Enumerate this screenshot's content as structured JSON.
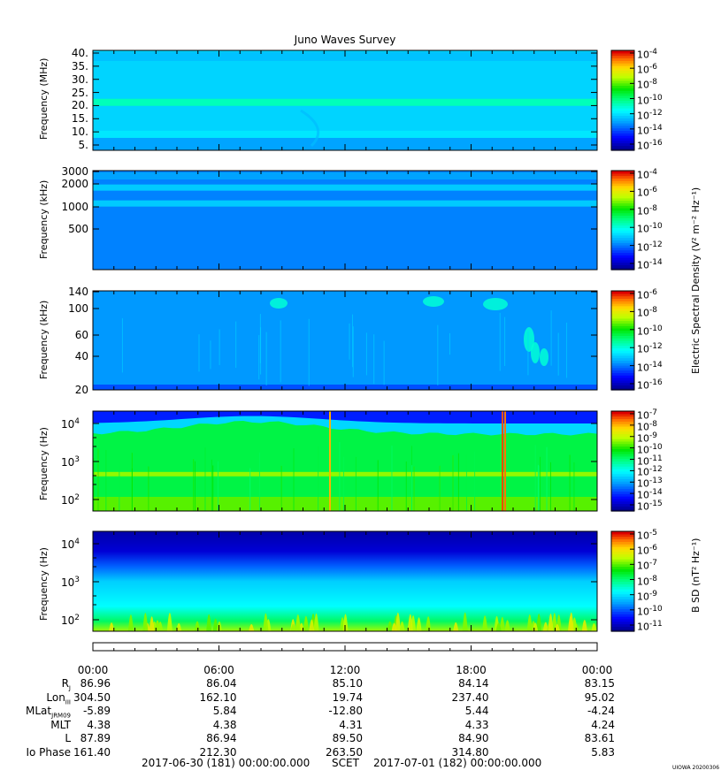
{
  "title": "Juno Waves Survey",
  "footer": {
    "start": "2017-06-30 (181) 00:00:00.000",
    "mid": "SCET",
    "end": "2017-07-01 (182) 00:00:00.000"
  },
  "credit": "UIOWA 20200306",
  "colors": {
    "accent_frame": "#000000"
  },
  "chart_data": [
    {
      "type": "heatmap",
      "name": "",
      "ylabel": "Frequency (MHz)",
      "y_ticks": [
        "40.",
        "35.",
        "30.",
        "25.",
        "20.",
        "15.",
        "10.",
        "5."
      ],
      "y_scale": "linear",
      "ylim": [
        3.5,
        41
      ],
      "background_level": -12.5,
      "colorbar_ticks": [
        "-4",
        "-6",
        "-8",
        "-10",
        "-12",
        "-14",
        "-16"
      ],
      "colorbar_range": [
        -17,
        -4
      ],
      "colorbar_label": "",
      "features": [
        {
          "desc": "bright band",
          "freq": 21.5,
          "level": -11
        },
        {
          "desc": "band",
          "freq": 9.5,
          "level": -12.2
        }
      ]
    },
    {
      "type": "heatmap",
      "name": "",
      "ylabel": "Frequency (kHz)",
      "y_ticks": [
        "3000",
        "2000",
        "1000",
        "500"
      ],
      "y_scale": "log",
      "ylim": [
        140,
        3000
      ],
      "background_level": -12,
      "colorbar_ticks": [
        "-4",
        "-6",
        "-8",
        "-10",
        "-12",
        "-14"
      ],
      "colorbar_range": [
        -15,
        -3
      ],
      "colorbar_label": "Electric Spectral Density (V² m⁻² Hz⁻¹)",
      "features": [
        {
          "desc": "band",
          "freq": 1800,
          "level": -11
        },
        {
          "desc": "band",
          "freq": 1100,
          "level": -11
        }
      ]
    },
    {
      "type": "heatmap",
      "name": "",
      "ylabel": "Frequency (kHz)",
      "y_ticks": [
        "140",
        "100",
        "60",
        "40",
        "20"
      ],
      "y_scale": "linear",
      "ylim": [
        20,
        140
      ],
      "background_level": -14,
      "colorbar_ticks": [
        "-6",
        "-8",
        "-10",
        "-12",
        "-14",
        "-16"
      ],
      "colorbar_range": [
        -17,
        -6
      ],
      "colorbar_label": "",
      "features": []
    },
    {
      "type": "heatmap",
      "name": "",
      "ylabel": "Frequency (Hz)",
      "y_ticks": [
        "4",
        "3",
        "2"
      ],
      "y_scale": "log",
      "ylim": [
        70,
        20000
      ],
      "background_level": -11,
      "colorbar_ticks": [
        "-7",
        "-8",
        "-9",
        "-10",
        "-11",
        "-12",
        "-13",
        "-14",
        "-15"
      ],
      "colorbar_range": [
        -15,
        -7
      ],
      "colorbar_label": "",
      "features": [
        {
          "desc": "band",
          "freq": 550,
          "level": -9
        }
      ]
    },
    {
      "type": "heatmap",
      "name": "",
      "ylabel": "Frequency (Hz)",
      "y_ticks": [
        "4",
        "3",
        "2"
      ],
      "y_scale": "log",
      "ylim": [
        60,
        25000
      ],
      "background_level": -9,
      "colorbar_ticks": [
        "-5",
        "-6",
        "-7",
        "-8",
        "-9",
        "-10",
        "-11"
      ],
      "colorbar_range": [
        -11,
        -4.5
      ],
      "colorbar_label": "B SD (nT² Hz⁻¹)",
      "features": []
    }
  ],
  "x_axis": {
    "time_labels": [
      "00:00",
      "06:00",
      "12:00",
      "18:00",
      "00:00"
    ]
  },
  "ephemeris": [
    {
      "label": "R",
      "sub": "J",
      "values": [
        "86.96",
        "86.04",
        "85.10",
        "84.14",
        "83.15"
      ]
    },
    {
      "label": "Lon",
      "sub": "III",
      "values": [
        "304.50",
        "162.10",
        "19.74",
        "237.40",
        "95.02"
      ]
    },
    {
      "label": "MLat",
      "sub": "JRM09",
      "values": [
        "-5.89",
        "5.84",
        "-12.80",
        "5.44",
        "-4.24"
      ]
    },
    {
      "label": "MLT",
      "sub": "",
      "values": [
        "4.38",
        "4.38",
        "4.31",
        "4.33",
        "4.24"
      ]
    },
    {
      "label": "L",
      "sub": "",
      "values": [
        "87.89",
        "86.94",
        "89.50",
        "84.90",
        "83.61"
      ]
    },
    {
      "label": "Io Phase",
      "sub": "",
      "values": [
        "161.40",
        "212.30",
        "263.50",
        "314.80",
        "5.83"
      ]
    }
  ]
}
